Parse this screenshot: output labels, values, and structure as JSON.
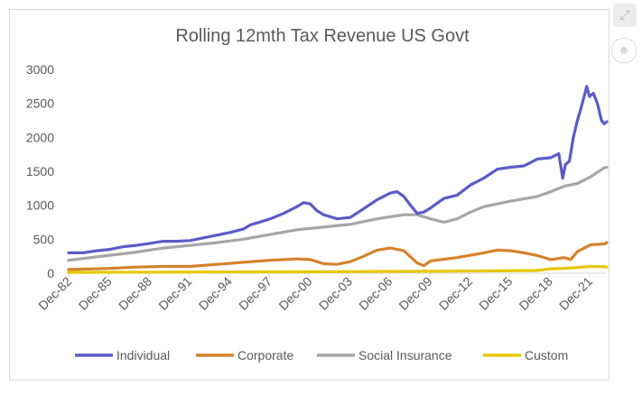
{
  "chart_data": {
    "type": "line",
    "title": "Rolling 12mth Tax Revenue US Govt",
    "xlabel": "",
    "ylabel": "",
    "ylim": [
      0,
      3000
    ],
    "yticks": [
      "0",
      "500",
      "1000",
      "1500",
      "2000",
      "2500",
      "3000"
    ],
    "xlim": [
      1982.9,
      2023.2
    ],
    "xticks": [
      "Dec-82",
      "Dec-85",
      "Dec-88",
      "Dec-91",
      "Dec-94",
      "Dec-97",
      "Dec-00",
      "Dec-03",
      "Dec-06",
      "Dec-09",
      "Dec-12",
      "Dec-15",
      "Dec-18",
      "Dec-21"
    ],
    "grid": false,
    "legend_position": "bottom",
    "series": [
      {
        "name": "Individual",
        "color": "#5b5bc8",
        "x": [
          1982.9,
          1984,
          1985,
          1986,
          1987,
          1988,
          1989,
          1990,
          1991,
          1992,
          1993,
          1994,
          1995,
          1996,
          1996.5,
          1997,
          1998,
          1999,
          2000,
          2000.5,
          2001,
          2001.5,
          2002,
          2003,
          2004,
          2005,
          2006,
          2007,
          2007.5,
          2008,
          2008.5,
          2009,
          2009.5,
          2010,
          2011,
          2012,
          2013,
          2014,
          2015,
          2016,
          2017,
          2018,
          2019,
          2019.6,
          2019.9,
          2020.1,
          2020.4,
          2020.7,
          2021,
          2021.3,
          2021.7,
          2021.9,
          2022.2,
          2022.5,
          2022.8,
          2023,
          2023.2
        ],
        "y": [
          300,
          300,
          330,
          350,
          390,
          410,
          440,
          470,
          470,
          480,
          520,
          560,
          600,
          650,
          710,
          740,
          800,
          880,
          980,
          1040,
          1020,
          920,
          860,
          800,
          820,
          950,
          1080,
          1180,
          1200,
          1130,
          1000,
          880,
          900,
          960,
          1100,
          1150,
          1300,
          1400,
          1530,
          1560,
          1580,
          1680,
          1700,
          1760,
          1400,
          1600,
          1650,
          2000,
          2250,
          2450,
          2750,
          2600,
          2650,
          2500,
          2250,
          2200,
          2230
        ]
      },
      {
        "name": "Corporate",
        "color": "#d6822a",
        "x": [
          1982.9,
          1984,
          1986,
          1988,
          1990,
          1992,
          1994,
          1996,
          1998,
          2000,
          2001,
          2002,
          2003,
          2004,
          2005,
          2006,
          2007,
          2008,
          2009,
          2009.5,
          2010,
          2012,
          2014,
          2015,
          2016,
          2017,
          2018,
          2019,
          2020,
          2020.5,
          2021,
          2022,
          2023,
          2023.2
        ],
        "y": [
          55,
          60,
          70,
          90,
          100,
          100,
          130,
          160,
          190,
          210,
          200,
          140,
          130,
          170,
          250,
          340,
          370,
          330,
          150,
          110,
          180,
          230,
          300,
          340,
          330,
          300,
          260,
          200,
          230,
          200,
          320,
          420,
          430,
          450
        ]
      },
      {
        "name": "Social Insurance",
        "color": "#a6a6a6",
        "x": [
          1982.9,
          1985,
          1988,
          1990,
          1992,
          1994,
          1996,
          1998,
          2000,
          2002,
          2004,
          2006,
          2008,
          2009,
          2010,
          2011,
          2012,
          2013,
          2014,
          2016,
          2018,
          2019,
          2020,
          2021,
          2022,
          2023,
          2023.2
        ],
        "y": [
          190,
          240,
          310,
          370,
          410,
          450,
          500,
          570,
          640,
          680,
          720,
          800,
          860,
          860,
          800,
          750,
          800,
          900,
          980,
          1060,
          1130,
          1200,
          1280,
          1320,
          1420,
          1550,
          1560
        ]
      },
      {
        "name": "Custom",
        "color": "#e6c800",
        "x": [
          1982.9,
          1990,
          2000,
          2005,
          2010,
          2015,
          2018,
          2019,
          2020,
          2021,
          2022,
          2023,
          2023.2
        ],
        "y": [
          12,
          16,
          20,
          24,
          28,
          34,
          40,
          65,
          70,
          85,
          100,
          95,
          90
        ]
      }
    ]
  }
}
